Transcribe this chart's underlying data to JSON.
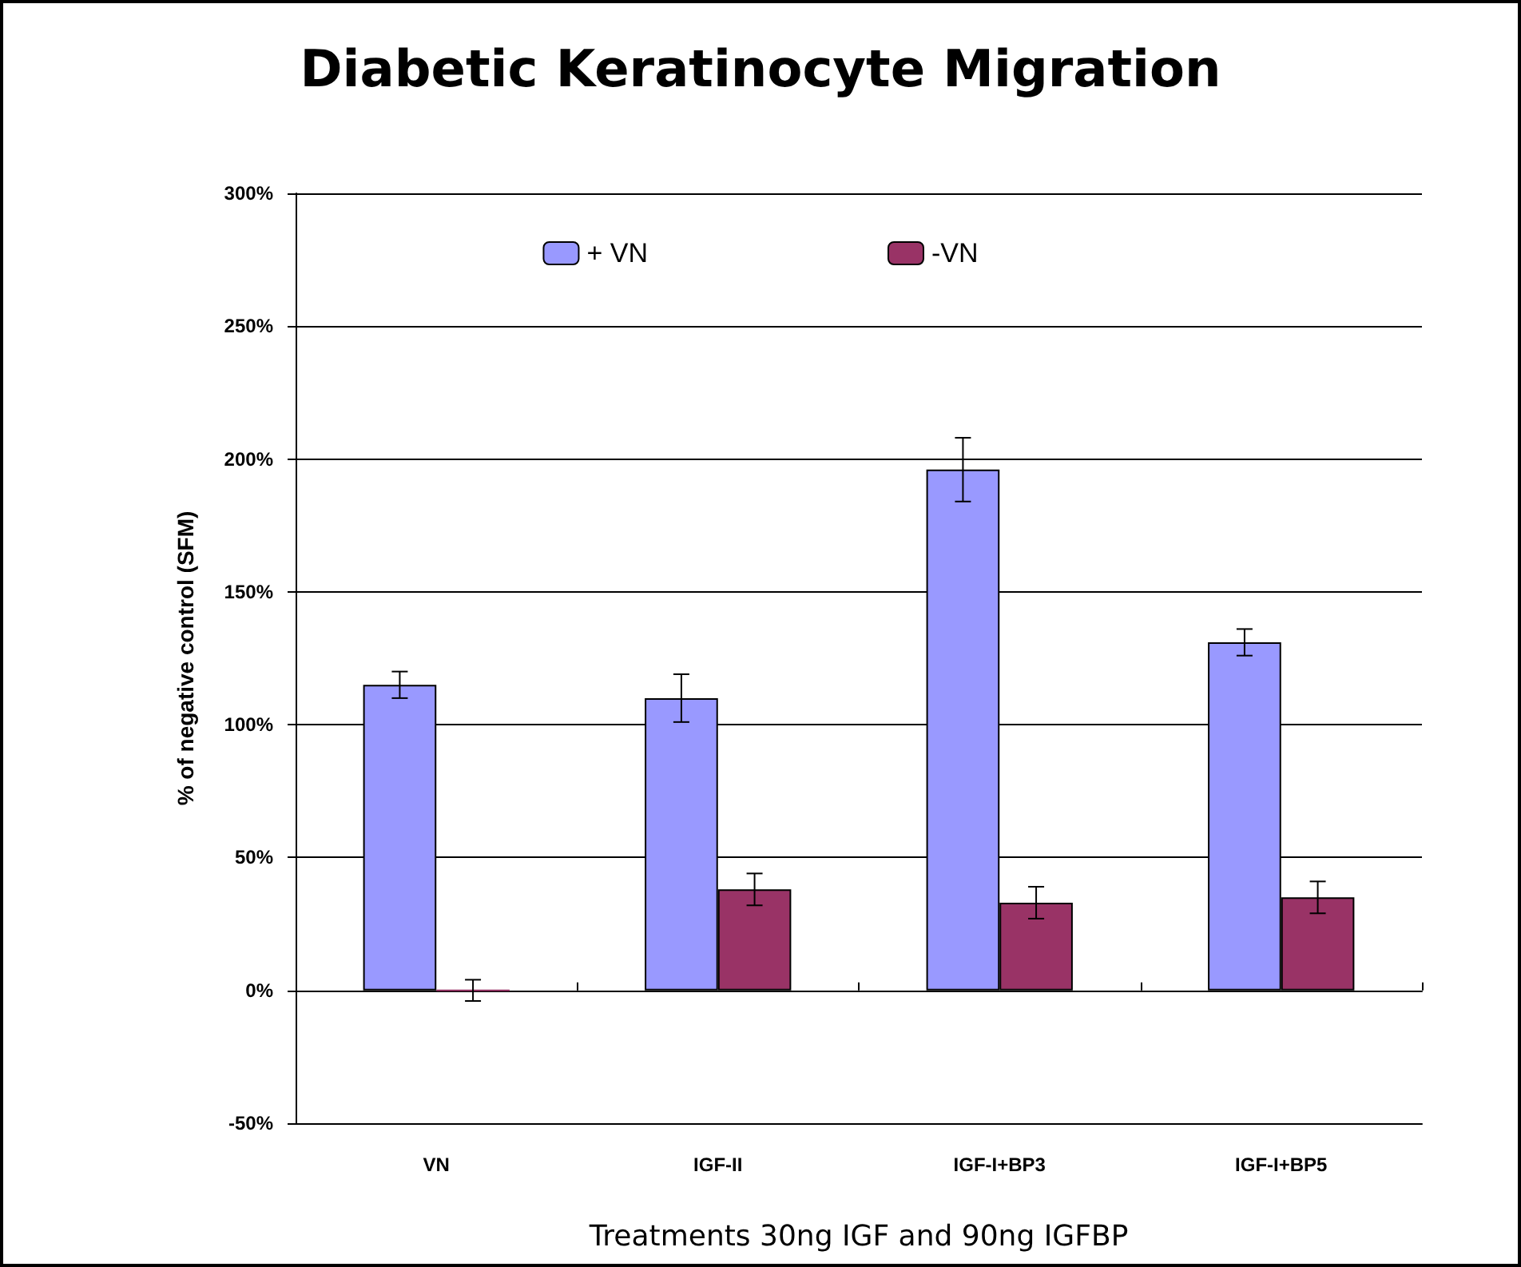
{
  "chart_data": {
    "type": "bar",
    "title": "Diabetic Keratinocyte Migration",
    "xlabel": "Treatments 30ng IGF and 90ng IGFBP",
    "ylabel": "% of negative control (SFM)",
    "categories": [
      "VN",
      "IGF-II",
      "IGF-I+BP3",
      "IGF-I+BP5"
    ],
    "series": [
      {
        "name": "+ VN",
        "color": "#9999ff",
        "values": [
          115,
          110,
          196,
          131
        ],
        "errors": [
          5,
          9,
          12,
          5
        ]
      },
      {
        "name": "-VN",
        "color": "#993366",
        "values": [
          0,
          38,
          33,
          35
        ],
        "errors": [
          4,
          6,
          6,
          6
        ]
      }
    ],
    "ylim": [
      -50,
      300
    ],
    "yticks": [
      {
        "value": -50,
        "label": "-50%"
      },
      {
        "value": 0,
        "label": "0%"
      },
      {
        "value": 50,
        "label": "50%"
      },
      {
        "value": 100,
        "label": "100%"
      },
      {
        "value": 150,
        "label": "150%"
      },
      {
        "value": 200,
        "label": "200%"
      },
      {
        "value": 250,
        "label": "250%"
      },
      {
        "value": 300,
        "label": "300%"
      }
    ],
    "grid": "y",
    "legend": "top"
  }
}
